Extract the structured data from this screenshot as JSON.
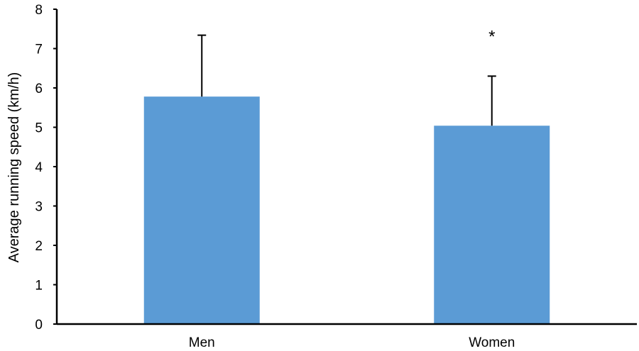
{
  "chart_data": {
    "type": "bar",
    "title": "",
    "xlabel": "",
    "ylabel": "Average running speed (km/h)",
    "ylim": [
      0,
      8
    ],
    "yticks": [
      0,
      1,
      2,
      3,
      4,
      5,
      6,
      7,
      8
    ],
    "categories": [
      "Men",
      "Women"
    ],
    "values": [
      5.78,
      5.04
    ],
    "error_upper": [
      1.56,
      1.26
    ],
    "bar_color": "#5B9BD5",
    "grid": false,
    "legend": "none",
    "annotations": [
      {
        "category": "Women",
        "text": "*"
      }
    ]
  }
}
